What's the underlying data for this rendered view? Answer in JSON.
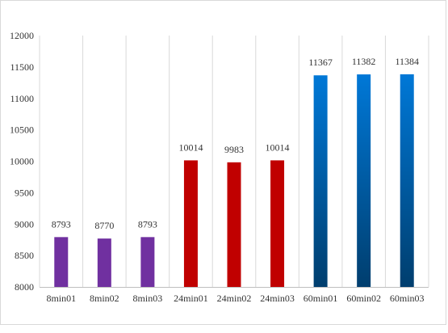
{
  "chart_data": {
    "type": "bar",
    "categories": [
      "8min01",
      "8min02",
      "8min03",
      "24min01",
      "24min02",
      "24min03",
      "60min01",
      "60min02",
      "60min03"
    ],
    "values": [
      8793,
      8770,
      8793,
      10014,
      9983,
      10014,
      11367,
      11382,
      11384
    ],
    "data_labels": [
      "8793",
      "8770",
      "8793",
      "10014",
      "9983",
      "10014",
      "11367",
      "11382",
      "11384"
    ],
    "title": "",
    "xlabel": "",
    "ylabel": "",
    "ylim": [
      8000,
      12000
    ],
    "yticks": [
      "8000",
      "8500",
      "9000",
      "9500",
      "10000",
      "10500",
      "11000",
      "11500",
      "12000"
    ],
    "grid": "vertical lines between categories",
    "legend": "none",
    "bar_groups": [
      {
        "members": [
          0,
          1,
          2
        ],
        "color": "#7030a0"
      },
      {
        "members": [
          3,
          4,
          5
        ],
        "color": "#c00000"
      },
      {
        "members": [
          6,
          7,
          8
        ],
        "gradient_top": "#0078d7",
        "gradient_bottom": "#003e6e"
      }
    ]
  }
}
